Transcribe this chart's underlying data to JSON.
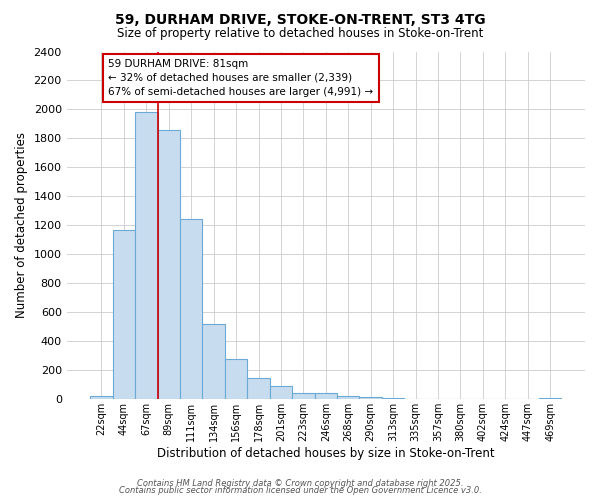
{
  "title1": "59, DURHAM DRIVE, STOKE-ON-TRENT, ST3 4TG",
  "title2": "Size of property relative to detached houses in Stoke-on-Trent",
  "xlabel": "Distribution of detached houses by size in Stoke-on-Trent",
  "ylabel": "Number of detached properties",
  "categories": [
    "22sqm",
    "44sqm",
    "67sqm",
    "89sqm",
    "111sqm",
    "134sqm",
    "156sqm",
    "178sqm",
    "201sqm",
    "223sqm",
    "246sqm",
    "268sqm",
    "290sqm",
    "313sqm",
    "335sqm",
    "357sqm",
    "380sqm",
    "402sqm",
    "424sqm",
    "447sqm",
    "469sqm"
  ],
  "values": [
    25,
    1170,
    1980,
    1860,
    1245,
    520,
    275,
    150,
    90,
    45,
    40,
    20,
    15,
    8,
    4,
    4,
    4,
    3,
    3,
    3,
    12
  ],
  "bar_color": "#c8dcf0",
  "bar_edge_color": "#6aaad4",
  "red_line_x": 2.5,
  "annotation_text": "59 DURHAM DRIVE: 81sqm\n← 32% of detached houses are smaller (2,339)\n67% of semi-detached houses are larger (4,991) →",
  "annotation_box_facecolor": "#ffffff",
  "annotation_box_edgecolor": "#cc0000",
  "ylim": [
    0,
    2400
  ],
  "yticks": [
    0,
    200,
    400,
    600,
    800,
    1000,
    1200,
    1400,
    1600,
    1800,
    2000,
    2200,
    2400
  ],
  "background_color": "#ffffff",
  "plot_background_color": "#ffffff",
  "grid_color": "#cccccc",
  "footer1": "Contains HM Land Registry data © Crown copyright and database right 2025.",
  "footer2": "Contains public sector information licensed under the Open Government Licence v3.0."
}
